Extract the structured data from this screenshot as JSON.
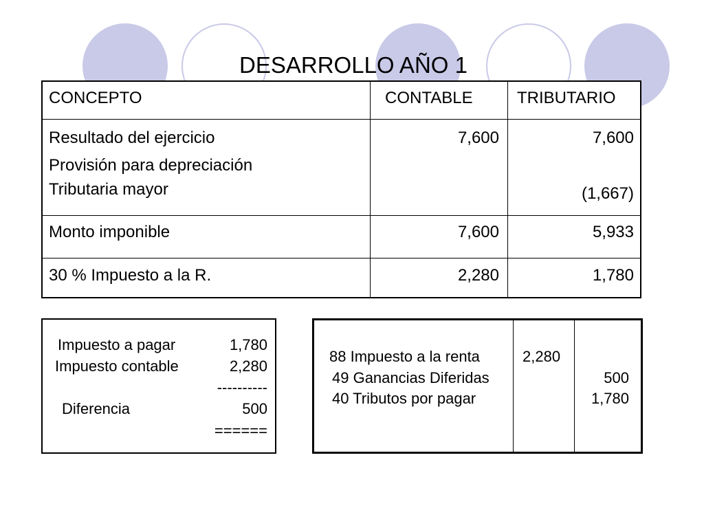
{
  "title": "DESARROLLO AÑO 1",
  "table": {
    "headers": [
      "CONCEPTO",
      "CONTABLE",
      "TRIBUTARIO"
    ],
    "rows": [
      {
        "concepto": [
          "Resultado del ejercicio",
          "Provisión para depreciación",
          "Tributaria mayor"
        ],
        "contable": [
          "7,600"
        ],
        "tributario": [
          "7,600",
          "(1,667)"
        ]
      },
      {
        "concepto": [
          "Monto imponible"
        ],
        "contable": [
          "7,600"
        ],
        "tributario": [
          "5,933"
        ]
      },
      {
        "concepto": [
          "30 % Impuesto a la R."
        ],
        "contable": [
          "2,280"
        ],
        "tributario": [
          "1,780"
        ]
      }
    ]
  },
  "summary": {
    "lines": [
      {
        "label": "Impuesto a pagar",
        "value": "1,780"
      },
      {
        "label": "Impuesto contable",
        "value": "2,280"
      },
      {
        "label": "",
        "value": "----------"
      },
      {
        "label": "Diferencia",
        "value": "500"
      },
      {
        "label": "",
        "value": "======"
      }
    ]
  },
  "journal": {
    "lines": [
      {
        "account": "88 Impuesto a la renta",
        "debit": "2,280",
        "credit": ""
      },
      {
        "account": "49 Ganancias Diferidas",
        "debit": "",
        "credit": "500"
      },
      {
        "account": "40 Tributos por pagar",
        "debit": "",
        "credit": "1,780"
      }
    ]
  },
  "colors": {
    "circle": "#c9c9e8",
    "border": "#000000"
  }
}
